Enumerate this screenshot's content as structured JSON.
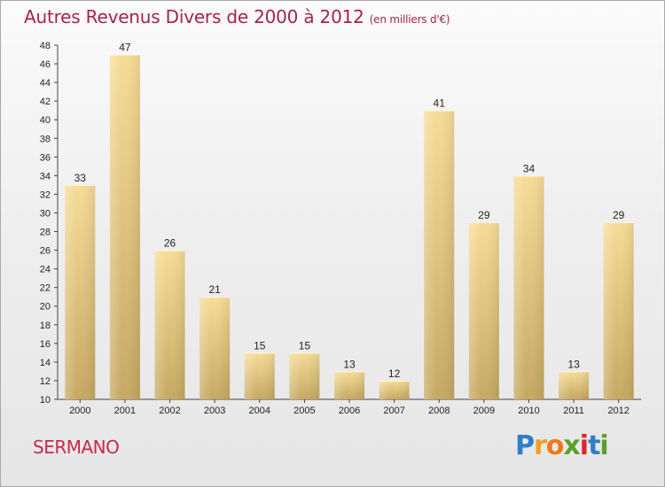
{
  "header": {
    "title": "Autres Revenus Divers de 2000 à 2012",
    "subtitle": "(en milliers d'€)"
  },
  "footer": {
    "commune": "SERMANO",
    "brand_letters": [
      "P",
      "r",
      "o",
      "x",
      "i",
      "t",
      "i"
    ],
    "brand_colors": [
      "#2f7fc7",
      "#f0a020",
      "#f07818",
      "#5ba02a",
      "#d8282a",
      "#2f7fc7",
      "#5ba02a"
    ]
  },
  "colors": {
    "bar_light": "#f7dc96",
    "bar_dark": "#c6a862",
    "title": "#a3244a",
    "commune": "#c8284f"
  },
  "chart_data": {
    "type": "bar",
    "title": "Autres Revenus Divers de 2000 à 2012",
    "subtitle": "(en milliers d'€)",
    "categories": [
      "2000",
      "2001",
      "2002",
      "2003",
      "2004",
      "2005",
      "2006",
      "2007",
      "2008",
      "2009",
      "2010",
      "2011",
      "2012"
    ],
    "values": [
      33,
      47,
      26,
      21,
      15,
      15,
      13,
      12,
      41,
      29,
      34,
      13,
      29
    ],
    "ylim": [
      10,
      48
    ],
    "yticks": [
      10,
      12,
      14,
      16,
      18,
      20,
      22,
      24,
      26,
      28,
      30,
      32,
      34,
      36,
      38,
      40,
      42,
      44,
      46,
      48
    ],
    "grid": false,
    "legend": "none"
  }
}
